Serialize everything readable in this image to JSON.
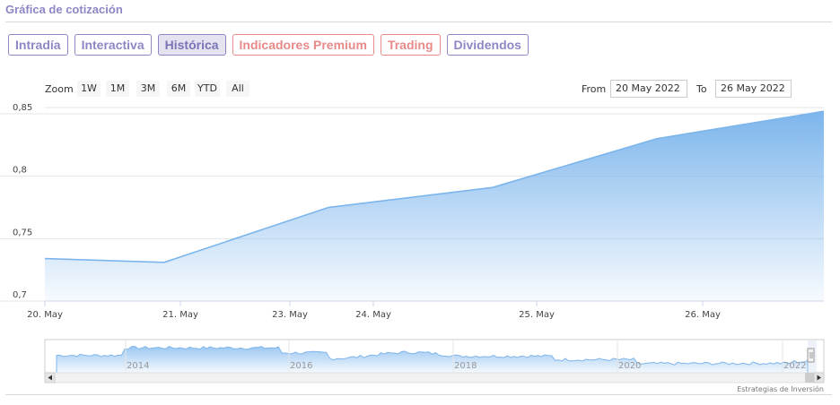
{
  "header": {
    "title": "Gráfica de cotización"
  },
  "tabs": [
    {
      "label": "Intradía",
      "style": "normal"
    },
    {
      "label": "Interactiva",
      "style": "normal"
    },
    {
      "label": "Histórica",
      "style": "active"
    },
    {
      "label": "Indicadores Premium",
      "style": "red"
    },
    {
      "label": "Trading",
      "style": "red"
    },
    {
      "label": "Dividendos",
      "style": "normal"
    }
  ],
  "zoom": {
    "label": "Zoom",
    "buttons": [
      "1W",
      "1M",
      "3M",
      "6M",
      "YTD",
      "All"
    ]
  },
  "range": {
    "from_label": "From",
    "from_value": "20 May 2022",
    "to_label": "To",
    "to_value": "26 May 2022"
  },
  "credits": "Estrategias de Inversión",
  "colors": {
    "accent": "#8d87c6",
    "premium": "#e88a8a",
    "series": "#7cb5ec"
  },
  "chart_data": {
    "type": "area",
    "x_ticks": [
      "20. May",
      "21. May",
      "23. May",
      "24. May",
      "25. May",
      "26. May"
    ],
    "y_ticks": [
      "0,7",
      "0,75",
      "0,8",
      "0,85"
    ],
    "ylim": [
      0.7,
      0.855
    ],
    "series": [
      {
        "x": [
          "2022-05-20",
          "2022-05-21",
          "2022-05-23",
          "2022-05-24",
          "2022-05-25",
          "2022-05-26"
        ],
        "values": [
          0.734,
          0.731,
          0.775,
          0.791,
          0.83,
          0.852
        ]
      }
    ],
    "navigator": {
      "ticks": [
        "2014",
        "2016",
        "2018",
        "2020",
        "2022"
      ]
    }
  }
}
